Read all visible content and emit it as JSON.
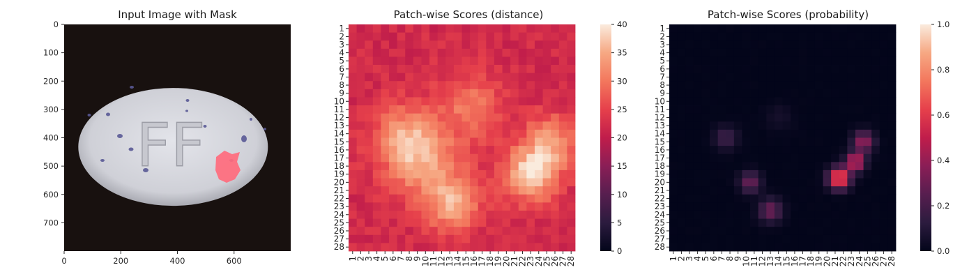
{
  "chart_data": [
    {
      "type": "image",
      "title": "Input Image with Mask",
      "x_ticks": [
        0,
        200,
        400,
        600
      ],
      "y_ticks": [
        0,
        100,
        200,
        300,
        400,
        500,
        600,
        700
      ],
      "xlim": [
        0,
        800
      ],
      "ylim": [
        800,
        0
      ],
      "image_content": {
        "object": "pill tablet with embossed letters",
        "embossed_text": "FF",
        "mask_color": "#ff6478"
      }
    },
    {
      "type": "heatmap",
      "title": "Patch-wise Scores (distance)",
      "rows": 28,
      "cols": 28,
      "colorbar": {
        "min": 0,
        "max": 40,
        "ticks": [
          0,
          5,
          10,
          15,
          20,
          25,
          30,
          35,
          40
        ],
        "colormap": "rocket"
      },
      "value_model": {
        "base": 22,
        "blobs": [
          {
            "r": 14.5,
            "c": 7.5,
            "sigma": 2.8,
            "amp": 12
          },
          {
            "r": 18.5,
            "c": 10.5,
            "sigma": 3.2,
            "amp": 10
          },
          {
            "r": 23.0,
            "c": 13.5,
            "sigma": 2.2,
            "amp": 12
          },
          {
            "r": 10.5,
            "c": 15.5,
            "sigma": 2.8,
            "amp": 8
          },
          {
            "r": 19.0,
            "c": 23.0,
            "sigma": 2.3,
            "amp": 17
          },
          {
            "r": 15.0,
            "c": 25.5,
            "sigma": 2.3,
            "amp": 11
          }
        ]
      }
    },
    {
      "type": "heatmap",
      "title": "Patch-wise Scores (probability)",
      "rows": 28,
      "cols": 28,
      "colorbar": {
        "min": 0,
        "max": 1.0,
        "ticks": [
          "0.0",
          "0.2",
          "0.4",
          "0.6",
          "0.8",
          "1.0"
        ],
        "colormap": "rocket"
      },
      "value_model": {
        "base": 0.0,
        "blobs": [
          {
            "r": 19.5,
            "c": 21.5,
            "sigma": 0.9,
            "amp": 0.75
          },
          {
            "r": 17.5,
            "c": 23.5,
            "sigma": 0.8,
            "amp": 0.55
          },
          {
            "r": 15.0,
            "c": 24.5,
            "sigma": 0.9,
            "amp": 0.4
          },
          {
            "r": 20.0,
            "c": 10.5,
            "sigma": 0.9,
            "amp": 0.3
          },
          {
            "r": 23.5,
            "c": 13.0,
            "sigma": 1.0,
            "amp": 0.3
          },
          {
            "r": 14.5,
            "c": 7.5,
            "sigma": 1.0,
            "amp": 0.18
          },
          {
            "r": 12.0,
            "c": 14.0,
            "sigma": 1.2,
            "amp": 0.06
          }
        ]
      }
    }
  ]
}
